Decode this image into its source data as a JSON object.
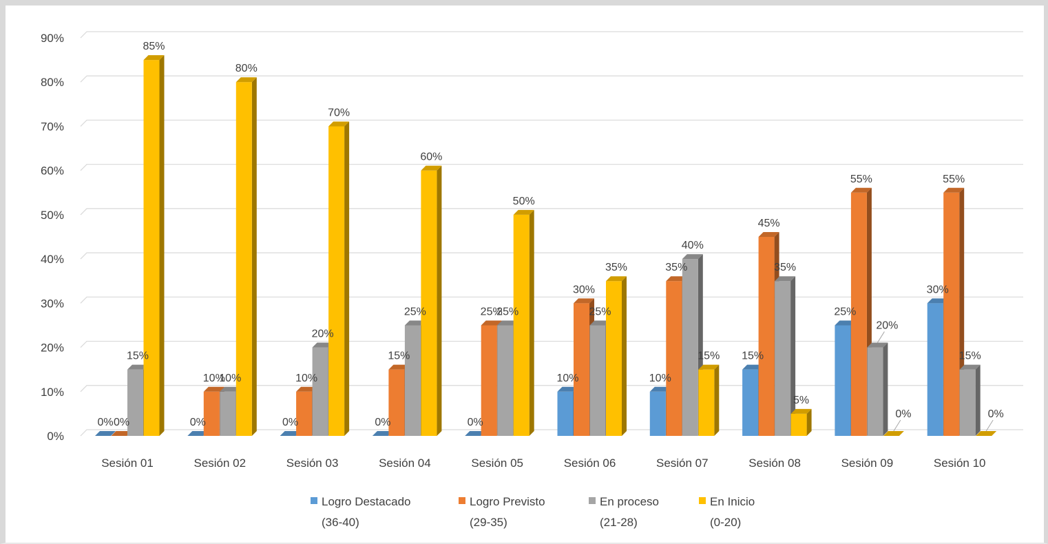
{
  "chart_data": {
    "type": "bar",
    "style": "3d-clustered-column",
    "title": "",
    "xlabel": "",
    "ylabel": "",
    "ylim": [
      0,
      90
    ],
    "yticks": [
      "0%",
      "10%",
      "20%",
      "30%",
      "40%",
      "50%",
      "60%",
      "70%",
      "80%",
      "90%"
    ],
    "grid": true,
    "legend_position": "bottom",
    "categories": [
      "Sesión 01",
      "Sesión 02",
      "Sesión 03",
      "Sesión 04",
      "Sesión 05",
      "Sesión 06",
      "Sesión 07",
      "Sesión 08",
      "Sesión 09",
      "Sesión 10"
    ],
    "series": [
      {
        "name": "Logro Destacado (36-40)",
        "legend_lines": [
          "Logro Destacado",
          "(36-40)"
        ],
        "color": "#5b9bd5",
        "values": [
          0,
          0,
          0,
          0,
          0,
          10,
          10,
          15,
          25,
          30
        ],
        "labels": [
          "0%",
          "0%",
          "0%",
          "0%",
          "0%",
          "10%",
          "10%",
          "15%",
          "25%",
          "30%"
        ]
      },
      {
        "name": "Logro Previsto (29-35)",
        "legend_lines": [
          "Logro Previsto",
          "(29-35)"
        ],
        "color": "#ed7d31",
        "values": [
          0,
          10,
          10,
          15,
          25,
          30,
          35,
          45,
          55,
          55
        ],
        "labels": [
          "0%",
          "10%",
          "10%",
          "15%",
          "25%",
          "30%",
          "35%",
          "45%",
          "55%",
          "55%"
        ]
      },
      {
        "name": "En proceso (21-28)",
        "legend_lines": [
          "En proceso",
          "(21-28)"
        ],
        "color": "#a5a5a5",
        "values": [
          15,
          10,
          20,
          25,
          25,
          25,
          40,
          35,
          20,
          15
        ],
        "labels": [
          "15%",
          "10%",
          "20%",
          "25%",
          "25%",
          "25%",
          "40%",
          "35%",
          "20%",
          "15%"
        ]
      },
      {
        "name": "En Inicio (0-20)",
        "legend_lines": [
          "En Inicio",
          "(0-20)"
        ],
        "color": "#ffc000",
        "values": [
          85,
          80,
          70,
          60,
          50,
          35,
          15,
          5,
          0,
          0
        ],
        "labels": [
          "85%",
          "80%",
          "70%",
          "60%",
          "50%",
          "35%",
          "15%",
          "5%",
          "0%",
          "0%"
        ]
      }
    ]
  }
}
